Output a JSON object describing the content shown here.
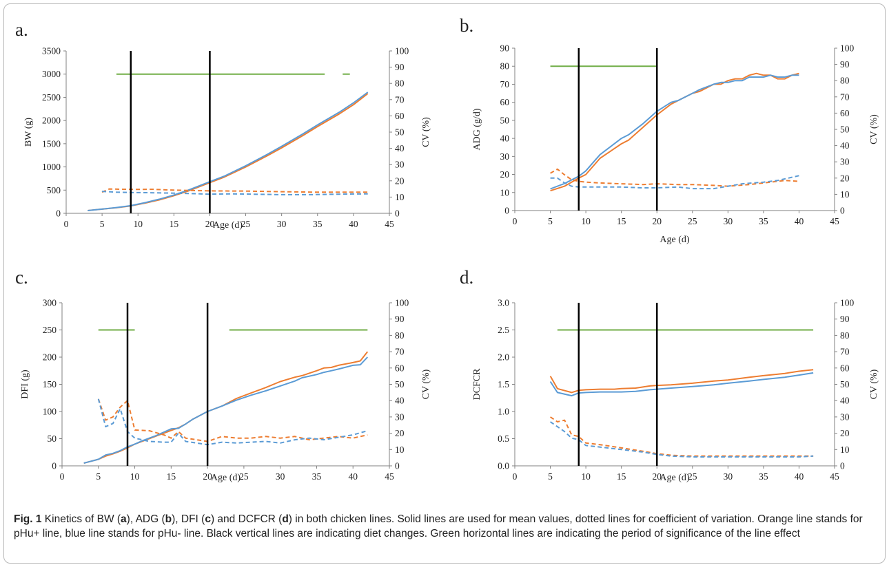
{
  "colors": {
    "orange": "#ED7D31",
    "blue": "#5B9BD5",
    "green": "#70AD47",
    "black": "#000000",
    "axis": "#808080"
  },
  "caption": {
    "label": "Fig. 1",
    "text_parts": [
      {
        "t": "  Kinetics of BW (",
        "b": false
      },
      {
        "t": "a",
        "b": true
      },
      {
        "t": "), ADG (",
        "b": false
      },
      {
        "t": "b",
        "b": true
      },
      {
        "t": "), DFI (",
        "b": false
      },
      {
        "t": "c",
        "b": true
      },
      {
        "t": ") and DCFCR (",
        "b": false
      },
      {
        "t": "d",
        "b": true
      },
      {
        "t": ") in both chicken lines. Solid lines are used for mean values, dotted lines for coefficient of variation. Orange line stands for pHu+ line, blue line stands for pHu- line. Black vertical lines are indicating diet changes. Green horizontal lines are indicating the period of significance of the line effect",
        "b": false
      }
    ]
  },
  "chart_data": [
    {
      "panel": "a.",
      "type": "line",
      "xlabel": "Age (d)",
      "ylabel": "BW (g)",
      "y2label": "CV (%)",
      "xlim": [
        0,
        45
      ],
      "xticks": [
        0,
        5,
        10,
        15,
        20,
        25,
        30,
        35,
        40,
        45
      ],
      "ylim": [
        0,
        3500
      ],
      "yticks": [
        0,
        500,
        1000,
        1500,
        2000,
        2500,
        3000,
        3500
      ],
      "y2lim": [
        0,
        100
      ],
      "y2ticks": [
        0,
        10,
        20,
        30,
        40,
        50,
        60,
        70,
        80,
        90,
        100
      ],
      "vlines": [
        9,
        20
      ],
      "green_segments": [
        [
          7,
          36,
          3000
        ],
        [
          38.5,
          39.5,
          3000
        ]
      ],
      "series": [
        {
          "line": "pHu+",
          "color": "orange",
          "dashed": false,
          "axis": "left",
          "x": [
            3,
            5,
            7,
            9,
            11,
            13,
            15,
            17,
            20,
            22,
            25,
            28,
            30,
            33,
            35,
            38,
            40,
            42
          ],
          "y": [
            60,
            90,
            120,
            160,
            220,
            290,
            380,
            480,
            660,
            780,
            1000,
            1240,
            1410,
            1680,
            1870,
            2140,
            2340,
            2580
          ]
        },
        {
          "line": "pHu-",
          "color": "blue",
          "dashed": false,
          "axis": "left",
          "x": [
            3,
            5,
            7,
            9,
            11,
            13,
            15,
            17,
            20,
            22,
            25,
            28,
            30,
            33,
            35,
            38,
            40,
            42
          ],
          "y": [
            60,
            90,
            125,
            165,
            230,
            305,
            395,
            500,
            680,
            800,
            1025,
            1270,
            1445,
            1715,
            1905,
            2175,
            2380,
            2610
          ]
        },
        {
          "line": "pHu+",
          "color": "orange",
          "dashed": true,
          "axis": "right",
          "x": [
            5,
            6,
            8,
            10,
            12,
            15,
            18,
            20,
            25,
            30,
            35,
            40,
            42
          ],
          "y": [
            13,
            15,
            14.8,
            14.7,
            14.8,
            14.3,
            14,
            13.8,
            13.7,
            13.3,
            13,
            13,
            13
          ]
        },
        {
          "line": "pHu-",
          "color": "blue",
          "dashed": true,
          "axis": "right",
          "x": [
            5,
            7,
            9,
            11,
            14,
            17,
            20,
            23,
            26,
            30,
            34,
            38,
            42
          ],
          "y": [
            13.5,
            13,
            12.8,
            12.7,
            12.5,
            12.2,
            11.8,
            12,
            11.8,
            11.5,
            11.5,
            11.8,
            12
          ]
        }
      ]
    },
    {
      "panel": "b.",
      "type": "line",
      "xlabel": "Age (d)",
      "ylabel": "ADG (g/d)",
      "y2label": "CV (%)",
      "xlim": [
        0,
        45
      ],
      "xticks": [
        0,
        5,
        10,
        15,
        20,
        25,
        30,
        35,
        40,
        45
      ],
      "ylim": [
        0,
        90
      ],
      "yticks": [
        0,
        10,
        20,
        30,
        40,
        50,
        60,
        70,
        80,
        90
      ],
      "y2lim": [
        0,
        100
      ],
      "y2ticks": [
        0,
        10,
        20,
        30,
        40,
        50,
        60,
        70,
        80,
        90,
        100
      ],
      "vlines": [
        9,
        20
      ],
      "green_segments": [
        [
          5,
          20,
          80
        ]
      ],
      "series": [
        {
          "line": "pHu+",
          "color": "orange",
          "dashed": false,
          "axis": "left",
          "x": [
            5,
            7,
            9,
            10,
            12,
            15,
            16,
            18,
            20,
            22,
            23,
            25,
            26,
            28,
            29,
            30,
            31,
            32,
            33,
            34,
            35,
            36,
            37,
            38,
            39,
            40
          ],
          "y": [
            11,
            13.5,
            18,
            20,
            29,
            37,
            39,
            46,
            53,
            59,
            61,
            65,
            66,
            70,
            70,
            72,
            73,
            73,
            75,
            76,
            75,
            75,
            73,
            73,
            75,
            76
          ]
        },
        {
          "line": "pHu-",
          "color": "blue",
          "dashed": false,
          "axis": "left",
          "x": [
            5,
            7,
            9,
            10,
            12,
            15,
            16,
            18,
            20,
            22,
            23,
            25,
            26,
            28,
            29,
            30,
            31,
            32,
            33,
            34,
            35,
            36,
            37,
            38,
            39,
            40
          ],
          "y": [
            12,
            15,
            19,
            22,
            31,
            40,
            42,
            48,
            55,
            60,
            61,
            65,
            67,
            70,
            71,
            71,
            72,
            72,
            74,
            74,
            74,
            75,
            74,
            74,
            75,
            75
          ]
        },
        {
          "line": "pHu+",
          "color": "orange",
          "dashed": true,
          "axis": "right",
          "x": [
            5,
            6,
            7,
            8,
            9,
            10,
            12,
            15,
            18,
            20,
            23,
            25,
            28,
            30,
            33,
            35,
            37,
            38,
            40
          ],
          "y": [
            23,
            25.5,
            22,
            19,
            18,
            17.5,
            17,
            16.5,
            16,
            16.5,
            16,
            16,
            15.5,
            15,
            16,
            17,
            18,
            18.5,
            18
          ]
        },
        {
          "line": "pHu-",
          "color": "blue",
          "dashed": true,
          "axis": "right",
          "x": [
            5,
            6,
            7,
            8,
            9,
            10,
            12,
            15,
            18,
            20,
            23,
            25,
            28,
            30,
            32,
            35,
            37,
            40
          ],
          "y": [
            20,
            20,
            17,
            15,
            14.5,
            14.5,
            14.5,
            14.5,
            14,
            14,
            14.5,
            13.5,
            13.5,
            15,
            16.5,
            17.5,
            18.5,
            21.5
          ]
        }
      ]
    },
    {
      "panel": "c.",
      "type": "line",
      "xlabel": "Age (d)",
      "ylabel": "DFI (g)",
      "y2label": "CV (%)",
      "xlim": [
        0,
        45
      ],
      "xticks": [
        0,
        5,
        10,
        15,
        20,
        25,
        30,
        35,
        40,
        45
      ],
      "ylim": [
        0,
        300
      ],
      "yticks": [
        0,
        50,
        100,
        150,
        200,
        250,
        300
      ],
      "y2lim": [
        0,
        100
      ],
      "y2ticks": [
        0,
        10,
        20,
        30,
        40,
        50,
        60,
        70,
        80,
        90,
        100
      ],
      "vlines": [
        9,
        20
      ],
      "green_segments": [
        [
          5,
          10,
          250
        ],
        [
          23,
          42,
          250
        ]
      ],
      "series": [
        {
          "line": "pHu+",
          "color": "orange",
          "dashed": false,
          "axis": "left",
          "x": [
            3,
            5,
            6,
            7,
            8,
            9,
            10,
            11,
            12,
            13,
            14,
            15,
            16,
            17,
            18,
            20,
            22,
            24,
            26,
            28,
            30,
            32,
            33,
            35,
            36,
            37,
            38,
            40,
            41,
            42
          ],
          "y": [
            5,
            12,
            18,
            22,
            27,
            33,
            40,
            45,
            50,
            55,
            60,
            65,
            70,
            77,
            86,
            100,
            110,
            124,
            134,
            144,
            155,
            163,
            166,
            175,
            180,
            181,
            185,
            190,
            193,
            210
          ]
        },
        {
          "line": "pHu-",
          "color": "blue",
          "dashed": false,
          "axis": "left",
          "x": [
            3,
            5,
            6,
            7,
            8,
            9,
            10,
            11,
            12,
            13,
            14,
            15,
            16,
            17,
            18,
            20,
            22,
            24,
            26,
            28,
            30,
            32,
            33,
            35,
            36,
            37,
            38,
            40,
            41,
            42
          ],
          "y": [
            5,
            12,
            20,
            23,
            28,
            35,
            40,
            46,
            51,
            56,
            62,
            68,
            69,
            77,
            86,
            100,
            110,
            121,
            130,
            138,
            147,
            156,
            162,
            168,
            172,
            175,
            178,
            185,
            186,
            200
          ]
        },
        {
          "line": "pHu+",
          "color": "orange",
          "dashed": true,
          "axis": "right",
          "x": [
            5,
            6,
            7,
            8,
            9,
            10,
            12,
            14,
            15,
            16,
            17,
            20,
            22,
            24,
            26,
            28,
            30,
            32,
            34,
            36,
            38,
            40,
            42
          ],
          "y": [
            41,
            28,
            30,
            36,
            40,
            22,
            21.5,
            19,
            17,
            21,
            17,
            15,
            18,
            17,
            17,
            18,
            17,
            18,
            16,
            17,
            18,
            17,
            19
          ]
        },
        {
          "line": "pHu-",
          "color": "blue",
          "dashed": true,
          "axis": "right",
          "x": [
            5,
            6,
            7,
            8,
            9,
            10,
            12,
            14,
            15,
            16,
            17,
            20,
            22,
            24,
            26,
            28,
            30,
            32,
            34,
            36,
            38,
            40,
            42
          ],
          "y": [
            41,
            24,
            26,
            35,
            21,
            17,
            15,
            14.5,
            14.5,
            20,
            15,
            13,
            14.5,
            14,
            14.5,
            15,
            14,
            16,
            17,
            16,
            17.5,
            19,
            21.5
          ]
        }
      ]
    },
    {
      "panel": "d.",
      "type": "line",
      "xlabel": "Age (d)",
      "ylabel": "DCFCR",
      "y2label": "CV (%)",
      "xlim": [
        0,
        45
      ],
      "xticks": [
        0,
        5,
        10,
        15,
        20,
        25,
        30,
        35,
        40,
        45
      ],
      "ylim": [
        0,
        3.0
      ],
      "yticks": [
        0.0,
        0.5,
        1.0,
        1.5,
        2.0,
        2.5,
        3.0
      ],
      "y2lim": [
        0,
        100
      ],
      "y2ticks": [
        0,
        10,
        20,
        30,
        40,
        50,
        60,
        70,
        80,
        90,
        100
      ],
      "vlines": [
        9,
        20
      ],
      "green_segments": [
        [
          6,
          42,
          2.5
        ]
      ],
      "series": [
        {
          "line": "pHu+",
          "color": "orange",
          "dashed": false,
          "axis": "left",
          "x": [
            5,
            6,
            8,
            9,
            10,
            12,
            14,
            15,
            17,
            19,
            20,
            22,
            25,
            28,
            30,
            33,
            35,
            38,
            40,
            42
          ],
          "y": [
            1.65,
            1.42,
            1.35,
            1.39,
            1.4,
            1.41,
            1.41,
            1.42,
            1.43,
            1.47,
            1.48,
            1.49,
            1.52,
            1.56,
            1.58,
            1.63,
            1.66,
            1.7,
            1.74,
            1.77
          ]
        },
        {
          "line": "pHu-",
          "color": "blue",
          "dashed": false,
          "axis": "left",
          "x": [
            5,
            6,
            8,
            9,
            10,
            12,
            14,
            15,
            17,
            19,
            20,
            22,
            25,
            28,
            30,
            33,
            35,
            38,
            40,
            42
          ],
          "y": [
            1.55,
            1.35,
            1.29,
            1.34,
            1.35,
            1.36,
            1.36,
            1.36,
            1.37,
            1.4,
            1.41,
            1.43,
            1.46,
            1.49,
            1.52,
            1.56,
            1.59,
            1.63,
            1.67,
            1.71
          ]
        },
        {
          "line": "pHu+",
          "color": "orange",
          "dashed": true,
          "axis": "right",
          "x": [
            5,
            6,
            7,
            8,
            9,
            10,
            12,
            15,
            18,
            20,
            22,
            25,
            30,
            35,
            40,
            42
          ],
          "y": [
            30,
            27,
            28,
            19,
            18,
            14,
            13,
            11,
            9,
            7.5,
            6.5,
            6,
            6,
            6,
            6,
            6
          ]
        },
        {
          "line": "pHu-",
          "color": "blue",
          "dashed": true,
          "axis": "right",
          "x": [
            5,
            6,
            7,
            8,
            9,
            10,
            12,
            15,
            18,
            20,
            22,
            25,
            30,
            35,
            40,
            42
          ],
          "y": [
            27,
            24,
            21,
            17,
            16,
            12.5,
            11.5,
            10,
            8.5,
            7,
            6,
            5.5,
            5.5,
            5.5,
            5.5,
            6
          ]
        }
      ]
    }
  ]
}
